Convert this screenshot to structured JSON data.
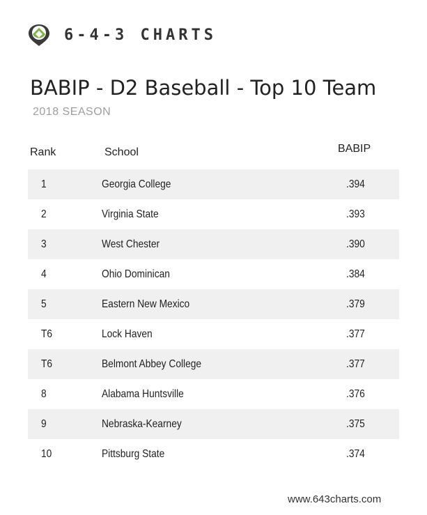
{
  "brand": {
    "name": "6-4-3 CHARTS",
    "logo_icon": "baseball-diamond-pin-icon",
    "colors": {
      "pin": "#3a3a3a",
      "field": "#7cb342"
    }
  },
  "chart_data": {
    "type": "table",
    "title": "BABIP - D2 Baseball - Top 10 Team",
    "subtitle": "2018 SEASON",
    "columns": [
      "Rank",
      "School",
      "BABIP"
    ],
    "rows": [
      {
        "rank": "1",
        "school": "Georgia College",
        "babip": ".394"
      },
      {
        "rank": "2",
        "school": "Virginia State",
        "babip": ".393"
      },
      {
        "rank": "3",
        "school": "West Chester",
        "babip": ".390"
      },
      {
        "rank": "4",
        "school": "Ohio Dominican",
        "babip": ".384"
      },
      {
        "rank": "5",
        "school": "Eastern New Mexico",
        "babip": ".379"
      },
      {
        "rank": "T6",
        "school": "Lock Haven",
        "babip": ".377"
      },
      {
        "rank": "T6",
        "school": "Belmont Abbey College",
        "babip": ".377"
      },
      {
        "rank": "8",
        "school": "Alabama Huntsville",
        "babip": ".376"
      },
      {
        "rank": "9",
        "school": "Nebraska-Kearney",
        "babip": ".375"
      },
      {
        "rank": "10",
        "school": "Pittsburg State",
        "babip": ".374"
      }
    ],
    "row_shading": "alternating",
    "shade_color": "#f0f0f0"
  },
  "footer": {
    "url": "www.643charts.com"
  }
}
